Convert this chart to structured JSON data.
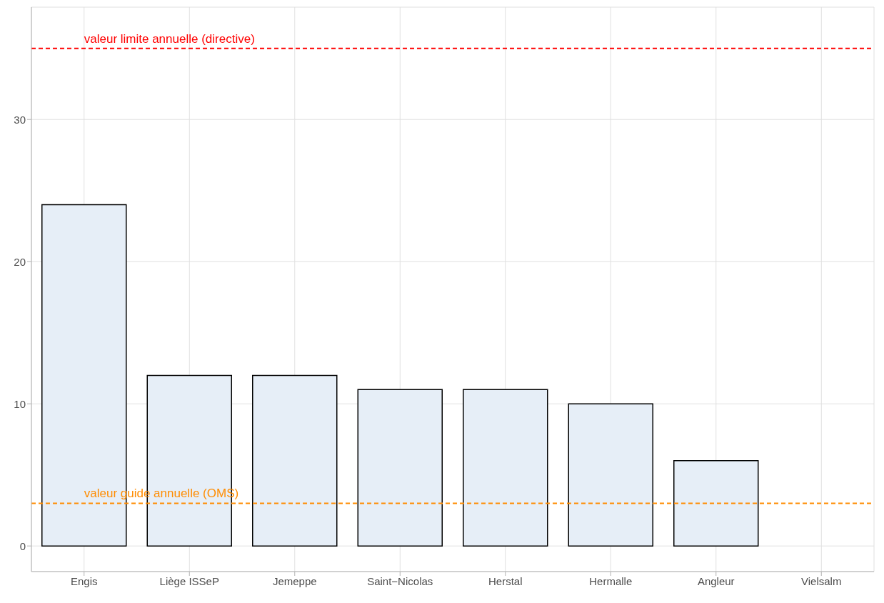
{
  "chart_data": {
    "type": "bar",
    "categories": [
      "Engis",
      "Liège ISSeP",
      "Jemeppe",
      "Saint−Nicolas",
      "Herstal",
      "Hermalle",
      "Angleur",
      "Vielsalm"
    ],
    "values": [
      24,
      12,
      12,
      11,
      11,
      10,
      6,
      0
    ],
    "color": "#e6eef7",
    "ylim": [
      -1.8,
      37.9
    ],
    "yticks": [
      0,
      10,
      20,
      30
    ],
    "grid": true,
    "ref_lines": [
      {
        "axis": "y",
        "value": 35,
        "label": "valeur limite annuelle (directive)",
        "color": "#ff0000",
        "line_style": "dashed"
      },
      {
        "axis": "y",
        "value": 3,
        "label": "valeur guide annuelle (OMS)",
        "color": "#ff8c00",
        "line_style": "dashed"
      }
    ]
  }
}
